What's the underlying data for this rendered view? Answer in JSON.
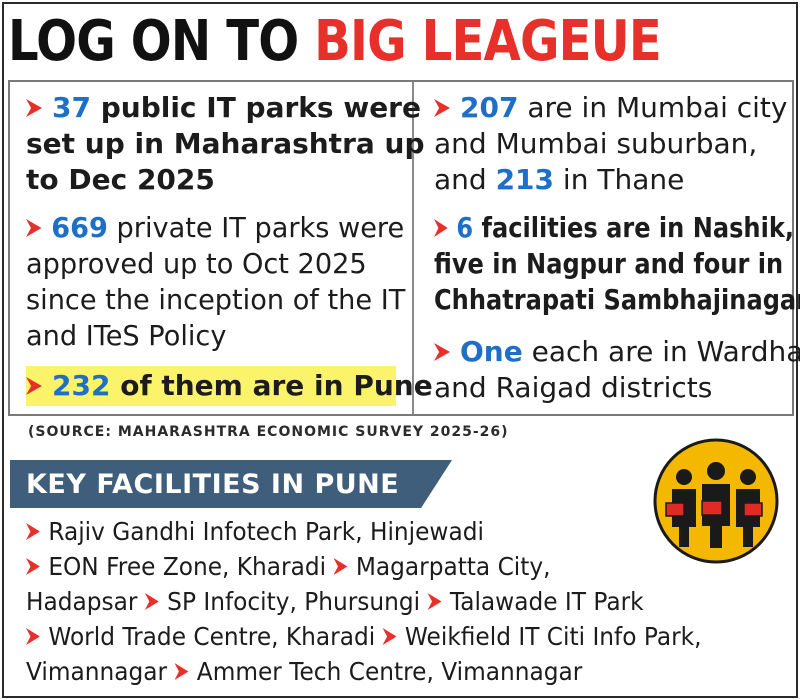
{
  "title": {
    "part1": "LOG ON TO ",
    "part2": "BIG LEAGEUE"
  },
  "colors": {
    "accent_red": "#e8302a",
    "number_blue": "#1e6fc7",
    "banner_blue": "#3f5e7c",
    "highlight": "#fbf36a",
    "badge_yellow": "#f5b800"
  },
  "left_column": {
    "item1": {
      "num": "37",
      "l1": " public IT parks were",
      "l2": "set up in Maharashtra up",
      "l3": "to Dec 2025"
    },
    "item2": {
      "num": "669",
      "l1": " private IT parks were",
      "l2": "approved up to Oct 2025",
      "l3": "since the inception of the IT",
      "l4": "and ITeS Policy"
    },
    "item3": {
      "num": "232",
      "l1": " of them are in Pune"
    }
  },
  "right_column": {
    "item1": {
      "num": "207",
      "l1": " are in Mumbai city",
      "l2": "and Mumbai suburban,",
      "l3a": "and ",
      "num2": "213",
      "l3b": " in Thane"
    },
    "item2": {
      "num": "6",
      "l1": " facilities are in Nashik,",
      "l2": "five in Nagpur and four in",
      "l3": "Chhatrapati Sambhajinagar"
    },
    "item3": {
      "num": "One",
      "l1": " each are in Wardha",
      "l2": "and Raigad districts"
    }
  },
  "source": "(SOURCE: MAHARASHTRA ECONOMIC SURVEY 2025-26)",
  "key_facilities": {
    "heading": "KEY FACILITIES IN PUNE",
    "f1": "Rajiv Gandhi Infotech Park, Hinjewadi",
    "f2": "EON Free Zone, Kharadi",
    "f3a": "Magarpatta City,",
    "f3b": "Hadapsar",
    "f4": "SP Infocity, Phursungi",
    "f5": "Talawade IT Park",
    "f6": "World Trade Centre, Kharadi",
    "f7a": "Weikfield IT Citi Info Park,",
    "f7b": "Vimannagar",
    "f8": "Ammer Tech Centre, Vimannagar"
  },
  "icons": {
    "bullet": "red-arrow-icon",
    "badge": "it-workers-icon"
  }
}
